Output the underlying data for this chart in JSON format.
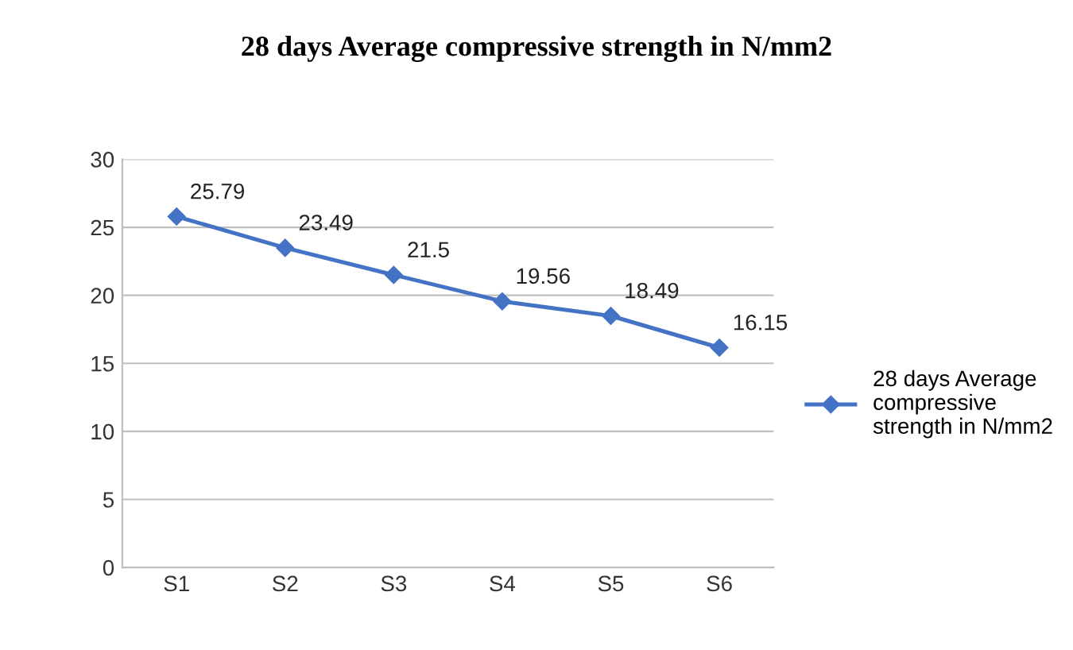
{
  "chart_data": {
    "type": "line",
    "title": "28 days Average compressive strength in N/mm2",
    "categories": [
      "S1",
      "S2",
      "S3",
      "S4",
      "S5",
      "S6"
    ],
    "series": [
      {
        "name": "28 days Average compressive strength in N/mm2",
        "color": "#4472c4",
        "values": [
          25.79,
          23.49,
          21.5,
          19.56,
          18.49,
          16.15
        ]
      }
    ],
    "ylim": [
      0,
      30
    ],
    "yticks": [
      0,
      5,
      10,
      15,
      20,
      25,
      30
    ],
    "grid": "y",
    "legend": "right",
    "marker": "diamond",
    "line_style": "solid",
    "data_labels": true
  }
}
